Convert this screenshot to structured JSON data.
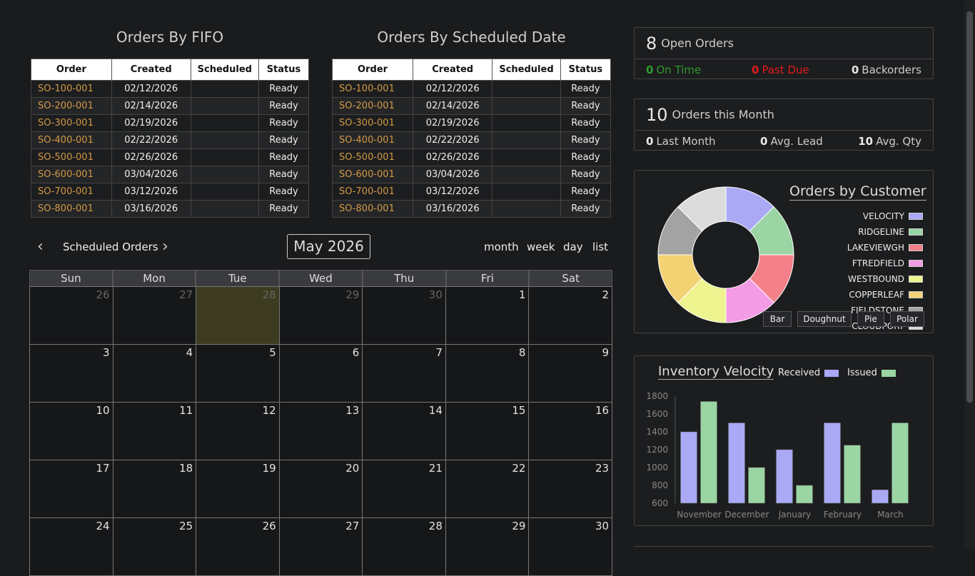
{
  "fifo": {
    "title": "Orders By FIFO"
  },
  "sched": {
    "title": "Orders By Scheduled Date"
  },
  "table": {
    "headers": [
      "Order",
      "Created",
      "Scheduled",
      "Status"
    ],
    "rows": [
      [
        "SO-100-001",
        "02/12/2026",
        "",
        "Ready"
      ],
      [
        "SO-200-001",
        "02/14/2026",
        "",
        "Ready"
      ],
      [
        "SO-300-001",
        "02/19/2026",
        "",
        "Ready"
      ],
      [
        "SO-400-001",
        "02/22/2026",
        "",
        "Ready"
      ],
      [
        "SO-500-001",
        "02/26/2026",
        "",
        "Ready"
      ],
      [
        "SO-600-001",
        "03/04/2026",
        "",
        "Ready"
      ],
      [
        "SO-700-001",
        "03/12/2026",
        "",
        "Ready"
      ],
      [
        "SO-800-001",
        "03/16/2026",
        "",
        "Ready"
      ]
    ]
  },
  "calendar": {
    "label": "Scheduled Orders",
    "month": "May 2026",
    "prev_icon": "‹",
    "next_icon": "›",
    "views": [
      "month",
      "week",
      "day",
      "list"
    ],
    "days": [
      "Sun",
      "Mon",
      "Tue",
      "Wed",
      "Thu",
      "Fri",
      "Sat"
    ],
    "weeks": [
      [
        "26",
        "27",
        "28",
        "29",
        "30",
        "1",
        "2"
      ],
      [
        "3",
        "4",
        "5",
        "6",
        "7",
        "8",
        "9"
      ],
      [
        "10",
        "11",
        "12",
        "13",
        "14",
        "15",
        "16"
      ],
      [
        "17",
        "18",
        "19",
        "20",
        "21",
        "22",
        "23"
      ],
      [
        "24",
        "25",
        "26",
        "27",
        "28",
        "29",
        "30"
      ]
    ],
    "other_month_count_first_week": 5,
    "today": "28"
  },
  "open": {
    "count": "8",
    "label": "Open Orders",
    "on_time_n": "0",
    "on_time": "On Time",
    "past_due_n": "0",
    "past_due": "Past Due",
    "back_n": "0",
    "back": "Backorders"
  },
  "month": {
    "count": "10",
    "label": "Orders this Month",
    "last_n": "0",
    "last": "Last Month",
    "lead_n": "0",
    "lead": "Avg. Lead",
    "qty_n": "10",
    "qty": "Avg. Qty"
  },
  "customer": {
    "title": "Orders by Customer",
    "legend": [
      {
        "name": "VELOCITY",
        "color": "#a9a9f5"
      },
      {
        "name": "RIDGELINE",
        "color": "#9ad5a3"
      },
      {
        "name": "LAKEVIEWGH",
        "color": "#f48189"
      },
      {
        "name": "FTREDFIELD",
        "color": "#f49be6"
      },
      {
        "name": "WESTBOUND",
        "color": "#eef48f"
      },
      {
        "name": "COPPERLEAF",
        "color": "#f3d273"
      },
      {
        "name": "FIELDSTONE",
        "color": "#a3a3a3"
      },
      {
        "name": "CLOUDPORT",
        "color": "#dcdcdc"
      }
    ],
    "buttons": [
      "Bar",
      "Doughnut",
      "Pie",
      "Polar"
    ]
  },
  "chart_data": {
    "type": "bar",
    "title": "Inventory Velocity",
    "categories": [
      "November",
      "December",
      "January",
      "February",
      "March"
    ],
    "series": [
      {
        "name": "Received",
        "color": "#a9a9f5",
        "values": [
          1400,
          1500,
          1200,
          1500,
          750
        ]
      },
      {
        "name": "Issued",
        "color": "#9ad5a3",
        "values": [
          1740,
          1000,
          800,
          1250,
          1500
        ]
      }
    ],
    "ylim": [
      600,
      1800
    ],
    "yticks": [
      "1800",
      "1600",
      "1400",
      "1200",
      "1000",
      "800",
      "600"
    ]
  }
}
